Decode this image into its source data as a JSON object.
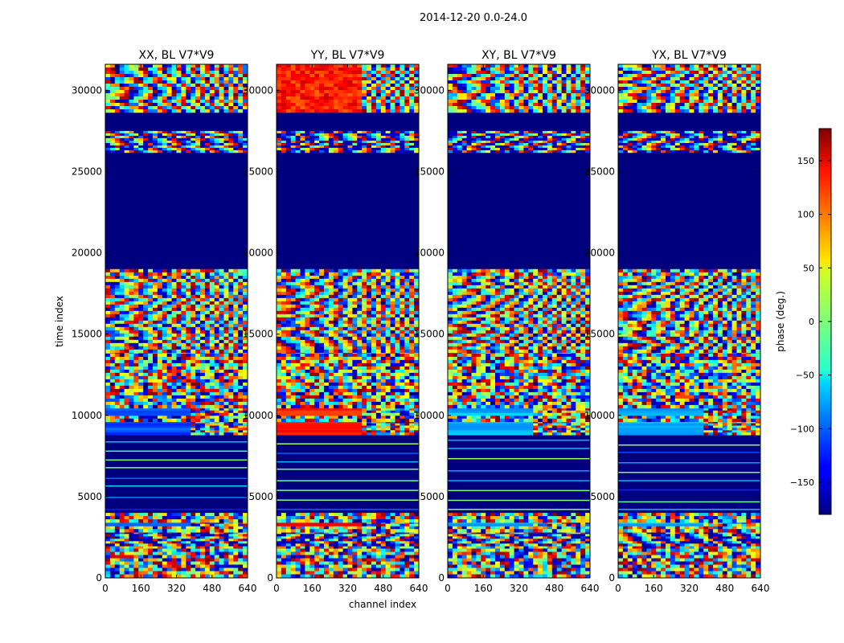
{
  "figure_title": "2014-12-20 0.0-24.0",
  "chart_data": {
    "type": "heatmap",
    "title": "2014-12-20 0.0-24.0",
    "xlabel": "channel index",
    "ylabel": "time index",
    "xlim": [
      0,
      640
    ],
    "ylim": [
      0,
      31600
    ],
    "x_ticks": [
      0,
      160,
      320,
      480,
      640
    ],
    "y_ticks": [
      0,
      5000,
      10000,
      15000,
      20000,
      25000,
      30000
    ],
    "panels": [
      {
        "title": "XX, BL V7*V9",
        "correlation": "XX",
        "red_hue": false
      },
      {
        "title": "YY, BL V7*V9",
        "correlation": "YY",
        "red_hue": true
      },
      {
        "title": "XY, BL V7*V9",
        "correlation": "XY",
        "red_hue": false
      },
      {
        "title": "YX, BL V7*V9",
        "correlation": "YX",
        "red_hue": false
      }
    ],
    "time_segments": [
      {
        "t0": 0,
        "t1": 2000,
        "kind": "noise"
      },
      {
        "t0": 2000,
        "t1": 3000,
        "kind": "stripes"
      },
      {
        "t0": 3000,
        "t1": 3200,
        "kind": "noise"
      },
      {
        "t0": 3200,
        "t1": 3600,
        "kind": "solid_band"
      },
      {
        "t0": 3600,
        "t1": 4000,
        "kind": "noise"
      },
      {
        "t0": 4000,
        "t1": 8800,
        "kind": "flagged_lines"
      },
      {
        "t0": 8800,
        "t1": 9800,
        "kind": "solid_band"
      },
      {
        "t0": 9800,
        "t1": 10000,
        "kind": "noise"
      },
      {
        "t0": 10000,
        "t1": 10600,
        "kind": "solid_band"
      },
      {
        "t0": 10600,
        "t1": 14000,
        "kind": "noise"
      },
      {
        "t0": 14000,
        "t1": 18800,
        "kind": "fringes"
      },
      {
        "t0": 18800,
        "t1": 19000,
        "kind": "noise"
      },
      {
        "t0": 19000,
        "t1": 26200,
        "kind": "flagged"
      },
      {
        "t0": 26200,
        "t1": 27500,
        "kind": "stripes"
      },
      {
        "t0": 27500,
        "t1": 28800,
        "kind": "flagged"
      },
      {
        "t0": 28800,
        "t1": 31600,
        "kind": "fringes"
      }
    ],
    "colorbar": {
      "label": "phase (deg.)",
      "range": [
        -180,
        180
      ],
      "ticks": [
        -150,
        -100,
        -50,
        0,
        50,
        100,
        150
      ],
      "tick_labels": [
        "−150",
        "−100",
        "−50",
        "0",
        "50",
        "100",
        "150"
      ],
      "colormap": "jet"
    }
  }
}
